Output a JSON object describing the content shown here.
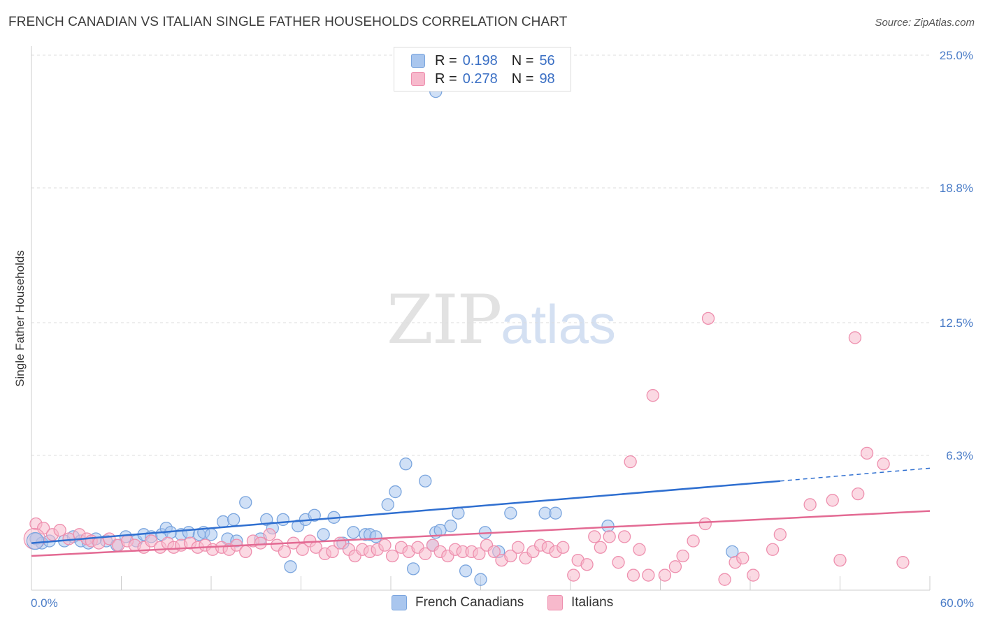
{
  "title": "FRENCH CANADIAN VS ITALIAN SINGLE FATHER HOUSEHOLDS CORRELATION CHART",
  "source": "Source: ZipAtlas.com",
  "watermark": {
    "zip": "ZIP",
    "atlas": "atlas"
  },
  "legend": {
    "rows": [
      {
        "r_label": "R =",
        "r_value": "0.198",
        "n_label": "N =",
        "n_value": "56",
        "color": "#a9c6ee",
        "border": "#7aa5de"
      },
      {
        "r_label": "R =",
        "r_value": "0.278",
        "n_label": "N =",
        "n_value": "98",
        "color": "#f7b9cc",
        "border": "#ee8fae"
      }
    ]
  },
  "bottom_legend": [
    {
      "label": "French Canadians",
      "color": "#a9c6ee",
      "border": "#7aa5de"
    },
    {
      "label": "Italians",
      "color": "#f7b9cc",
      "border": "#ee8fae"
    }
  ],
  "chart_data": {
    "type": "scatter",
    "title": "FRENCH CANADIAN VS ITALIAN SINGLE FATHER HOUSEHOLDS CORRELATION CHART",
    "xlabel": "",
    "ylabel": "Single Father Households",
    "xlim": [
      0,
      60
    ],
    "ylim": [
      0,
      25
    ],
    "y_ticks": [
      6.3,
      12.5,
      18.8,
      25.0
    ],
    "y_tick_labels": [
      "6.3%",
      "12.5%",
      "18.8%",
      "25.0%"
    ],
    "x_tick_labels": [
      "0.0%",
      "60.0%"
    ],
    "grid": true,
    "series": [
      {
        "name": "French Canadians",
        "color": "#7aa5de",
        "fill": "#a9c6ee",
        "line_color": "#2f6fd0",
        "trend": {
          "x0": 0,
          "y0": 2.2,
          "x1": 50,
          "y1": 5.1,
          "dash_to_x": 60,
          "dash_to_y": 5.7
        },
        "points": [
          [
            0.3,
            2.4
          ],
          [
            0.7,
            2.2
          ],
          [
            1.2,
            2.3
          ],
          [
            2.2,
            2.3
          ],
          [
            2.8,
            2.5
          ],
          [
            3.3,
            2.3
          ],
          [
            3.8,
            2.2
          ],
          [
            4.3,
            2.4
          ],
          [
            5.0,
            2.3
          ],
          [
            5.7,
            2.1
          ],
          [
            6.3,
            2.5
          ],
          [
            7.0,
            2.3
          ],
          [
            7.5,
            2.6
          ],
          [
            8.0,
            2.5
          ],
          [
            8.7,
            2.6
          ],
          [
            9.0,
            2.9
          ],
          [
            9.3,
            2.7
          ],
          [
            10.0,
            2.6
          ],
          [
            10.5,
            2.7
          ],
          [
            11.2,
            2.6
          ],
          [
            11.5,
            2.7
          ],
          [
            12.0,
            2.6
          ],
          [
            12.8,
            3.2
          ],
          [
            13.1,
            2.4
          ],
          [
            13.5,
            3.3
          ],
          [
            13.7,
            2.3
          ],
          [
            14.3,
            4.1
          ],
          [
            15.3,
            2.4
          ],
          [
            15.7,
            3.3
          ],
          [
            16.1,
            2.9
          ],
          [
            16.8,
            3.3
          ],
          [
            17.3,
            1.1
          ],
          [
            17.8,
            3.0
          ],
          [
            18.3,
            3.3
          ],
          [
            18.9,
            3.5
          ],
          [
            19.5,
            2.6
          ],
          [
            20.2,
            3.4
          ],
          [
            20.8,
            2.2
          ],
          [
            21.5,
            2.7
          ],
          [
            22.3,
            2.6
          ],
          [
            22.6,
            2.6
          ],
          [
            23.0,
            2.5
          ],
          [
            23.8,
            4.0
          ],
          [
            24.3,
            4.6
          ],
          [
            25.0,
            5.9
          ],
          [
            25.5,
            1.0
          ],
          [
            26.3,
            5.1
          ],
          [
            26.8,
            2.1
          ],
          [
            27.0,
            2.7
          ],
          [
            27.3,
            2.8
          ],
          [
            28.0,
            3.0
          ],
          [
            28.5,
            3.6
          ],
          [
            29.0,
            0.9
          ],
          [
            30.0,
            0.5
          ],
          [
            30.3,
            2.7
          ],
          [
            31.2,
            1.8
          ],
          [
            32.0,
            3.6
          ],
          [
            34.3,
            3.6
          ],
          [
            35.0,
            3.6
          ],
          [
            38.5,
            3.0
          ],
          [
            46.8,
            1.8
          ],
          [
            27.0,
            23.3
          ]
        ]
      },
      {
        "name": "Italians",
        "color": "#ee8fae",
        "fill": "#f7b9cc",
        "line_color": "#e36a93",
        "trend": {
          "x0": 0,
          "y0": 1.6,
          "x1": 60,
          "y1": 3.7
        },
        "points": [
          [
            0.3,
            3.1
          ],
          [
            0.8,
            2.9
          ],
          [
            1.4,
            2.6
          ],
          [
            1.9,
            2.8
          ],
          [
            2.5,
            2.4
          ],
          [
            3.2,
            2.6
          ],
          [
            3.7,
            2.4
          ],
          [
            4.0,
            2.3
          ],
          [
            4.5,
            2.2
          ],
          [
            5.2,
            2.4
          ],
          [
            5.8,
            2.1
          ],
          [
            6.4,
            2.3
          ],
          [
            6.9,
            2.1
          ],
          [
            7.5,
            2.0
          ],
          [
            8.0,
            2.3
          ],
          [
            8.6,
            2.0
          ],
          [
            9.1,
            2.2
          ],
          [
            9.5,
            2.0
          ],
          [
            10.0,
            2.1
          ],
          [
            10.6,
            2.2
          ],
          [
            11.1,
            2.0
          ],
          [
            11.6,
            2.1
          ],
          [
            12.1,
            1.9
          ],
          [
            12.7,
            2.0
          ],
          [
            13.2,
            1.9
          ],
          [
            13.7,
            2.1
          ],
          [
            14.3,
            1.8
          ],
          [
            14.8,
            2.3
          ],
          [
            15.3,
            2.2
          ],
          [
            15.9,
            2.6
          ],
          [
            16.4,
            2.1
          ],
          [
            16.9,
            1.8
          ],
          [
            17.5,
            2.2
          ],
          [
            18.1,
            1.9
          ],
          [
            18.6,
            2.3
          ],
          [
            19.0,
            2.0
          ],
          [
            19.6,
            1.7
          ],
          [
            20.1,
            1.8
          ],
          [
            20.6,
            2.2
          ],
          [
            21.2,
            1.9
          ],
          [
            21.6,
            1.6
          ],
          [
            22.1,
            1.9
          ],
          [
            22.6,
            1.8
          ],
          [
            23.1,
            1.9
          ],
          [
            23.6,
            2.1
          ],
          [
            24.1,
            1.6
          ],
          [
            24.7,
            2.0
          ],
          [
            25.2,
            1.8
          ],
          [
            25.8,
            2.0
          ],
          [
            26.3,
            1.7
          ],
          [
            26.8,
            2.1
          ],
          [
            27.3,
            1.8
          ],
          [
            27.8,
            1.6
          ],
          [
            28.3,
            1.9
          ],
          [
            28.8,
            1.8
          ],
          [
            29.4,
            1.8
          ],
          [
            29.9,
            1.7
          ],
          [
            30.4,
            2.1
          ],
          [
            30.9,
            1.8
          ],
          [
            31.4,
            1.4
          ],
          [
            32.0,
            1.6
          ],
          [
            32.5,
            2.0
          ],
          [
            33.0,
            1.5
          ],
          [
            33.5,
            1.8
          ],
          [
            34.0,
            2.1
          ],
          [
            34.5,
            2.0
          ],
          [
            35.0,
            1.8
          ],
          [
            35.5,
            2.0
          ],
          [
            36.2,
            0.7
          ],
          [
            36.5,
            1.4
          ],
          [
            37.1,
            1.2
          ],
          [
            37.6,
            2.5
          ],
          [
            38.0,
            2.0
          ],
          [
            38.6,
            2.5
          ],
          [
            39.2,
            1.3
          ],
          [
            39.6,
            2.5
          ],
          [
            40.2,
            0.7
          ],
          [
            40.6,
            1.9
          ],
          [
            41.2,
            0.7
          ],
          [
            42.3,
            0.7
          ],
          [
            43.0,
            1.1
          ],
          [
            43.5,
            1.6
          ],
          [
            44.2,
            2.3
          ],
          [
            45.0,
            3.1
          ],
          [
            46.3,
            0.5
          ],
          [
            47.0,
            1.3
          ],
          [
            47.5,
            1.5
          ],
          [
            48.2,
            0.7
          ],
          [
            49.5,
            1.9
          ],
          [
            50.0,
            2.6
          ],
          [
            52.0,
            4.0
          ],
          [
            53.5,
            4.2
          ],
          [
            54.0,
            1.4
          ],
          [
            55.2,
            4.5
          ],
          [
            55.8,
            6.4
          ],
          [
            56.9,
            5.9
          ],
          [
            58.2,
            1.3
          ],
          [
            41.5,
            9.1
          ],
          [
            45.2,
            12.7
          ],
          [
            55.0,
            11.8
          ],
          [
            40.0,
            6.0
          ]
        ]
      }
    ]
  }
}
